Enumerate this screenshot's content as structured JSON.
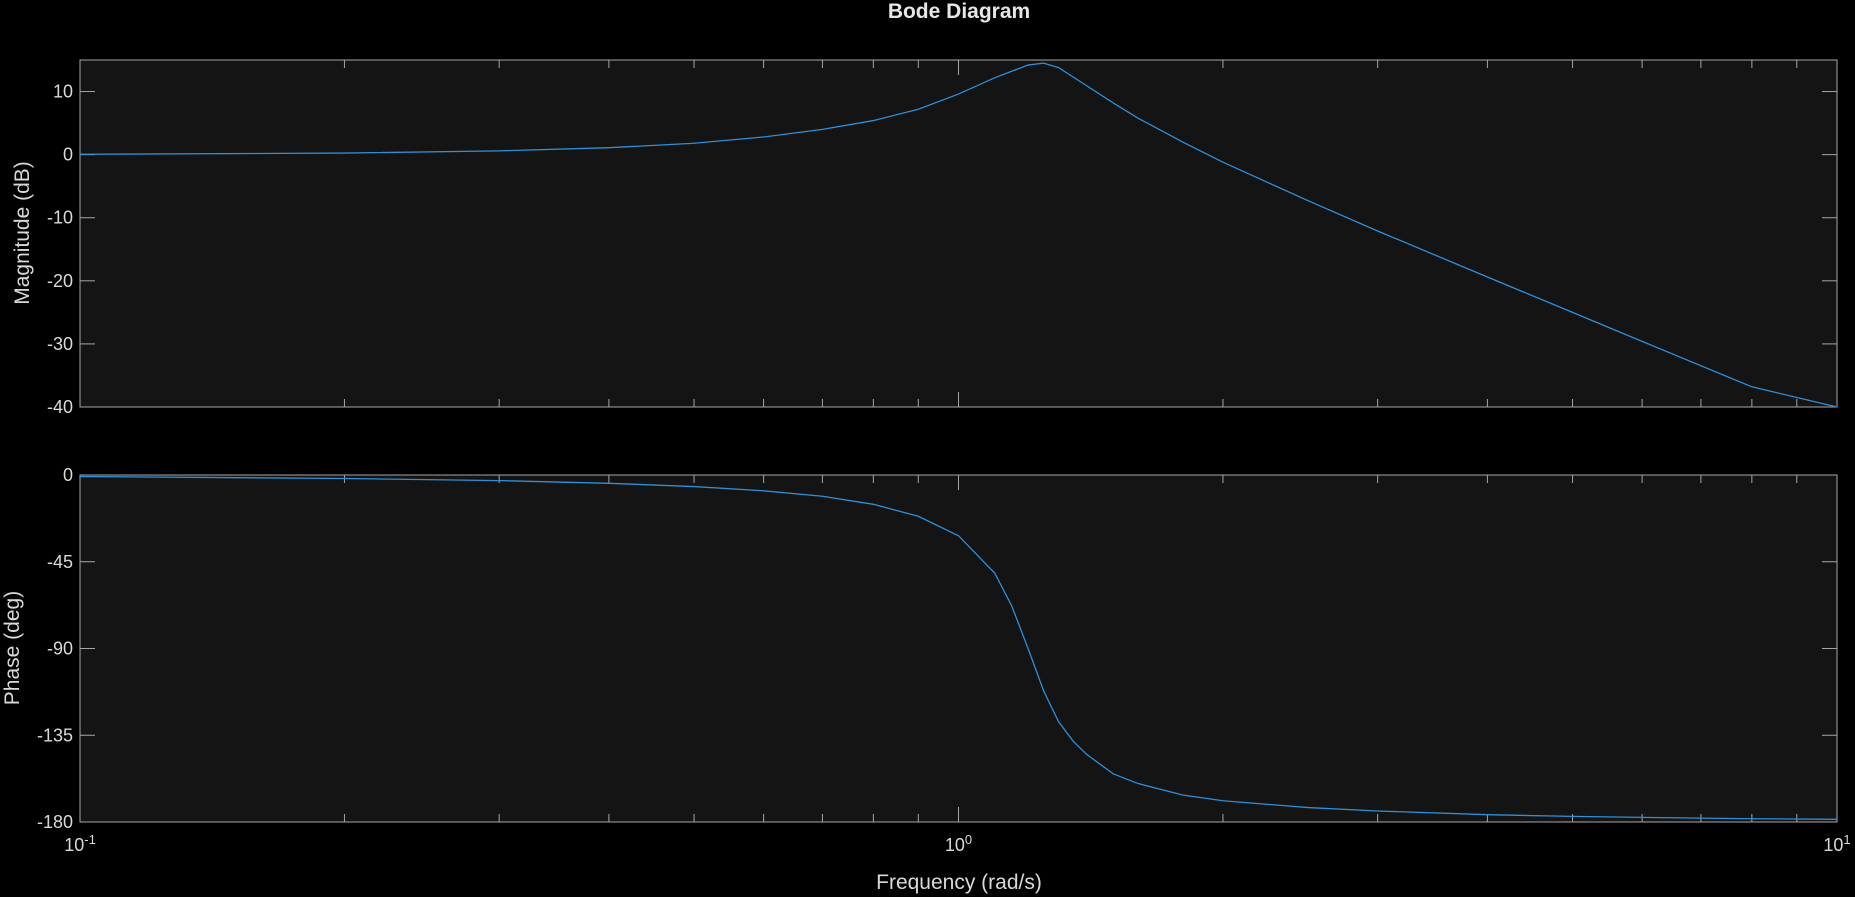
{
  "colors": {
    "background": "#000000",
    "axes_bg": "#141414",
    "axes_edge": "#a6a6a6",
    "line": "#2f8fd8",
    "text": "#d9d9d9"
  },
  "chart_data": [
    {
      "type": "line",
      "title": "Bode Diagram",
      "xlabel": "Frequency (rad/s)",
      "ylabel": "Magnitude (dB)",
      "xscale": "log",
      "xlim": [
        0.1,
        10
      ],
      "ylim": [
        -40,
        15
      ],
      "yticks": [
        10,
        0,
        -10,
        -20,
        -30,
        -40
      ],
      "grid": false,
      "series": [
        {
          "x": [
            0.1,
            0.2,
            0.3,
            0.4,
            0.5,
            0.6,
            0.7,
            0.8,
            0.9,
            1.0,
            1.1,
            1.2,
            1.25,
            1.3,
            1.4,
            1.5,
            1.6,
            1.8,
            2.0,
            2.5,
            3.0,
            4.0,
            5.0,
            6.0,
            8.0,
            10.0
          ],
          "y": [
            0.06,
            0.25,
            0.6,
            1.1,
            1.8,
            2.8,
            4.0,
            5.4,
            7.2,
            9.6,
            12.2,
            14.2,
            14.5,
            13.8,
            10.9,
            8.2,
            5.8,
            2.0,
            -1.2,
            -7.3,
            -12.1,
            -19.4,
            -25.0,
            -29.6,
            -36.8,
            -42.5
          ]
        }
      ]
    },
    {
      "type": "line",
      "xlabel": "Frequency (rad/s)",
      "ylabel": "Phase (deg)",
      "xscale": "log",
      "xlim": [
        0.1,
        10
      ],
      "ylim": [
        -180,
        0
      ],
      "yticks": [
        0,
        -45,
        -90,
        -135,
        -180
      ],
      "xticklabels": [
        "10-1",
        "100",
        "101"
      ],
      "grid": false,
      "series": [
        {
          "x": [
            0.1,
            0.2,
            0.3,
            0.4,
            0.5,
            0.6,
            0.7,
            0.8,
            0.9,
            1.0,
            1.1,
            1.15,
            1.2,
            1.25,
            1.3,
            1.35,
            1.4,
            1.5,
            1.6,
            1.8,
            2.0,
            2.5,
            3.0,
            4.0,
            5.0,
            6.0,
            8.0,
            10.0
          ],
          "y": [
            -0.8,
            -1.8,
            -2.9,
            -4.3,
            -6.0,
            -8.2,
            -11.0,
            -15.2,
            -21.4,
            -31.5,
            -51.0,
            -68.0,
            -90.0,
            -112.0,
            -128.0,
            -138.0,
            -145.0,
            -155.0,
            -160.0,
            -166.0,
            -169.0,
            -172.5,
            -174.3,
            -176.2,
            -177.1,
            -177.6,
            -178.3,
            -178.6
          ]
        }
      ]
    }
  ]
}
